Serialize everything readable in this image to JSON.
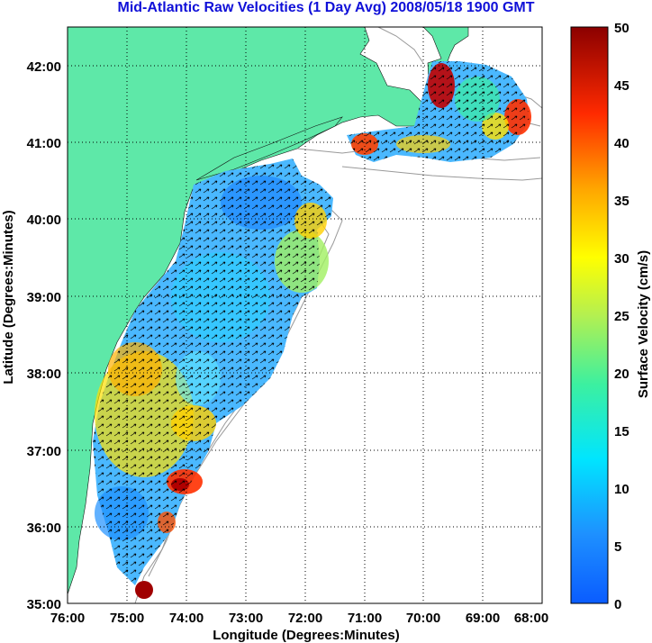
{
  "title": "Mid-Atlantic Raw Velocities (1 Day Avg) 2008/05/18 1900 GMT",
  "map": {
    "xlabel": "Longitude (Degrees:Minutes)",
    "ylabel": "Latitude (Degrees:Minutes)",
    "x_ticks": [
      "76:00",
      "75:00",
      "74:00",
      "73:00",
      "72:00",
      "71:00",
      "70:00",
      "69:00",
      "68:00"
    ],
    "y_ticks": [
      "42:00",
      "41:00",
      "40:00",
      "39:00",
      "38:00",
      "37:00",
      "36:00",
      "35:00"
    ],
    "colors": {
      "land": "#5ee8a8",
      "grid": "#000000",
      "frame": "#000000"
    }
  },
  "colorbar": {
    "label": "Surface Velocity (cm/s)",
    "ticks": [
      "50",
      "45",
      "40",
      "35",
      "30",
      "25",
      "20",
      "15",
      "10",
      "5",
      "0"
    ],
    "min": 0,
    "max": 50
  }
}
